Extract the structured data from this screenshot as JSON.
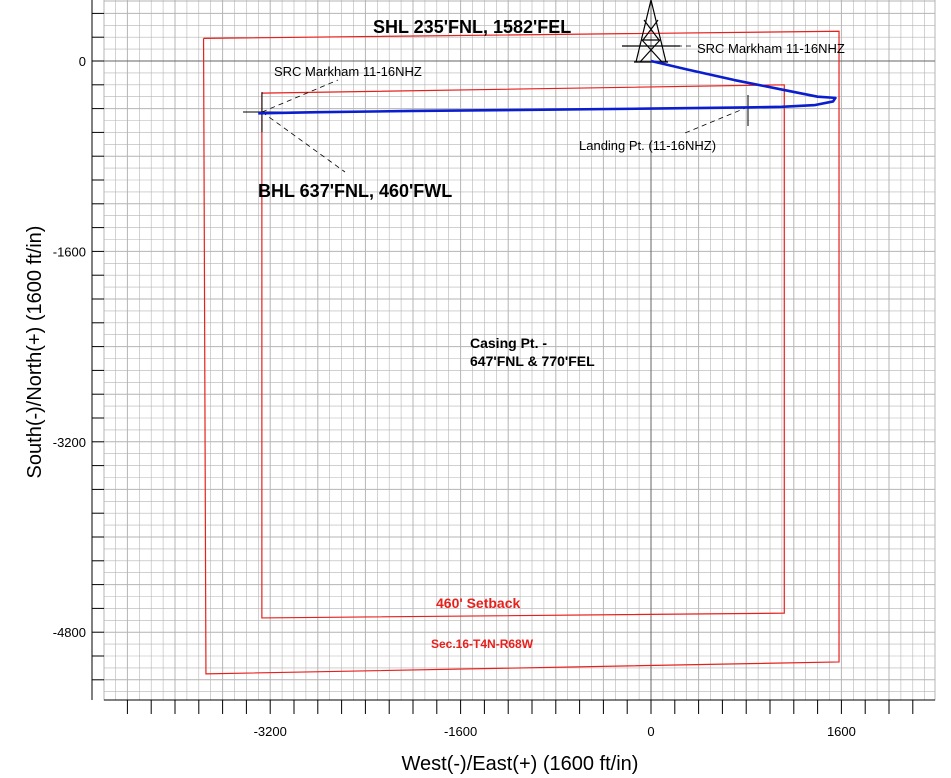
{
  "chart_data": {
    "type": "line",
    "xlabel": "West(-)/East(+) (1600 ft/in)",
    "ylabel": "South(-)/North(+) (1600 ft/in)",
    "xlim": [
      -4600,
      2400
    ],
    "ylim": [
      -5350,
      500
    ],
    "x_ticks": [
      -3200,
      -1600,
      0,
      1600
    ],
    "y_ticks": [
      0,
      -1600,
      -3200,
      -4800
    ],
    "grid": true,
    "colors": {
      "wellbore": "#0a1ecf",
      "boundary": "#e8201c",
      "grid": "#b4b4b4"
    },
    "wellbore_path": {
      "x": [
        0,
        300,
        700,
        1100,
        1400,
        1550,
        1530,
        1380,
        1100,
        800,
        0,
        -1000,
        -2000,
        -2800,
        -3300
      ],
      "y": [
        0,
        -70,
        -160,
        -240,
        -300,
        -310,
        -340,
        -370,
        -385,
        -390,
        -400,
        -410,
        -420,
        -430,
        -440
      ]
    },
    "section_boundary": {
      "x": [
        -3760,
        1580,
        1580,
        -3740,
        -3760
      ],
      "y": [
        190,
        250,
        -5050,
        -5150,
        190
      ]
    },
    "setback_boundary": {
      "x": [
        -3270,
        1120,
        1120,
        -3270,
        -3270
      ],
      "y": [
        -270,
        -200,
        -4640,
        -4680,
        -270
      ]
    },
    "annotations": {
      "shl": "SHL 235'FNL, 1582'FEL",
      "src_right": "SRC Markham 11-16NHZ",
      "src_left": "SRC Markham 11-16NHZ",
      "landing": "Landing Pt. (11-16NHZ)",
      "bhl": "BHL 637'FNL, 460'FWL",
      "casing_1": "Casing Pt. -",
      "casing_2": "647'FNL & 770'FEL",
      "setback": "460' Setback",
      "section": "Sec.16-T4N-R68W"
    }
  }
}
